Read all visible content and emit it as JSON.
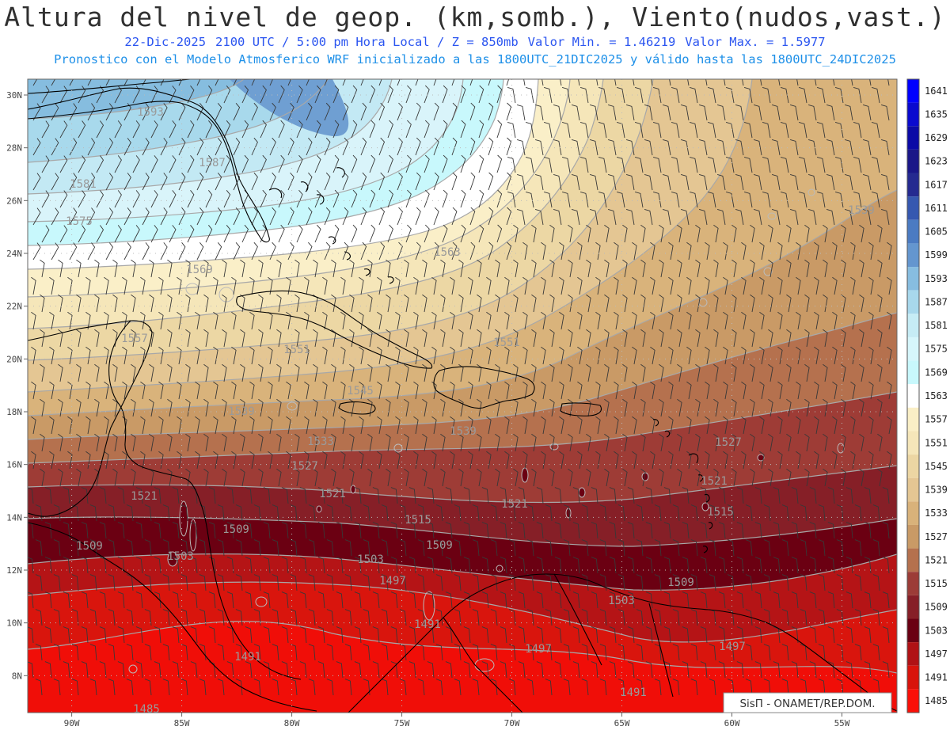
{
  "header": {
    "title": "Altura del nivel de geop. (km,somb.), Viento(nudos,vast.)",
    "date": "22-Dic-2025",
    "time": "2100 UTC / 5:00 pm Hora Local / Z = 850mb",
    "valmin": "Valor Min. = 1.46219",
    "valmax": "Valor Max. = 1.5977",
    "model": "Pronostico con el Modelo Atmosferico WRF inicializado a las 1800UTC_21DIC2025 y válido hasta las  1800UTC_24DIC2025"
  },
  "map": {
    "lon_range": [
      -92,
      -52.5
    ],
    "lat_range": [
      6.6,
      30.6
    ],
    "lon_ticks": [
      "90W",
      "85W",
      "80W",
      "75W",
      "70W",
      "65W",
      "60W",
      "55W"
    ],
    "lat_ticks": [
      "30N",
      "28N",
      "26N",
      "24N",
      "22N",
      "20N",
      "18N",
      "16N",
      "14N",
      "12N",
      "10N",
      "8N"
    ],
    "contour_labels": [
      "1593",
      "1587",
      "1581",
      "1575",
      "1569",
      "1563",
      "1557",
      "1551",
      "1551",
      "1545",
      "1539",
      "1539",
      "1539",
      "1533",
      "1527",
      "1527",
      "1521",
      "1521",
      "1521",
      "1521",
      "1515",
      "1515",
      "1509",
      "1509",
      "1509",
      "1509",
      "1503",
      "1503",
      "1503",
      "1497",
      "1497",
      "1497",
      "1491",
      "1491",
      "1491",
      "1485"
    ],
    "colors": {
      "land_outline": "#000000",
      "contour_line": "#a8a8a8",
      "barb": "#383838",
      "grid": "#bbbbbb"
    }
  },
  "colorbar": {
    "levels": [
      "1641",
      "1635",
      "1629",
      "1623",
      "1617",
      "1611",
      "1605",
      "1599",
      "1593",
      "1587",
      "1581",
      "1575",
      "1569",
      "1563",
      "1557",
      "1551",
      "1545",
      "1539",
      "1533",
      "1527",
      "1521",
      "1515",
      "1509",
      "1503",
      "1497",
      "1491",
      "1485"
    ],
    "colors": [
      "#0000ff",
      "#0a0acf",
      "#0b0aa6",
      "#1a1788",
      "#252a90",
      "#3658b0",
      "#4b7bc2",
      "#6496cf",
      "#87bde0",
      "#a8d8ec",
      "#c6ecf5",
      "#d6f6fb",
      "#c8f8fc",
      "#ffffff",
      "#faefc6",
      "#f5e6b9",
      "#ecd6a3",
      "#e4c693",
      "#d9b27a",
      "#c99a66",
      "#b5714e",
      "#9c3c37",
      "#861f27",
      "#6a0012",
      "#b01215",
      "#d8140c",
      "#fa1008"
    ]
  },
  "credit": "SisΠ - ONAMET/REP.DOM."
}
